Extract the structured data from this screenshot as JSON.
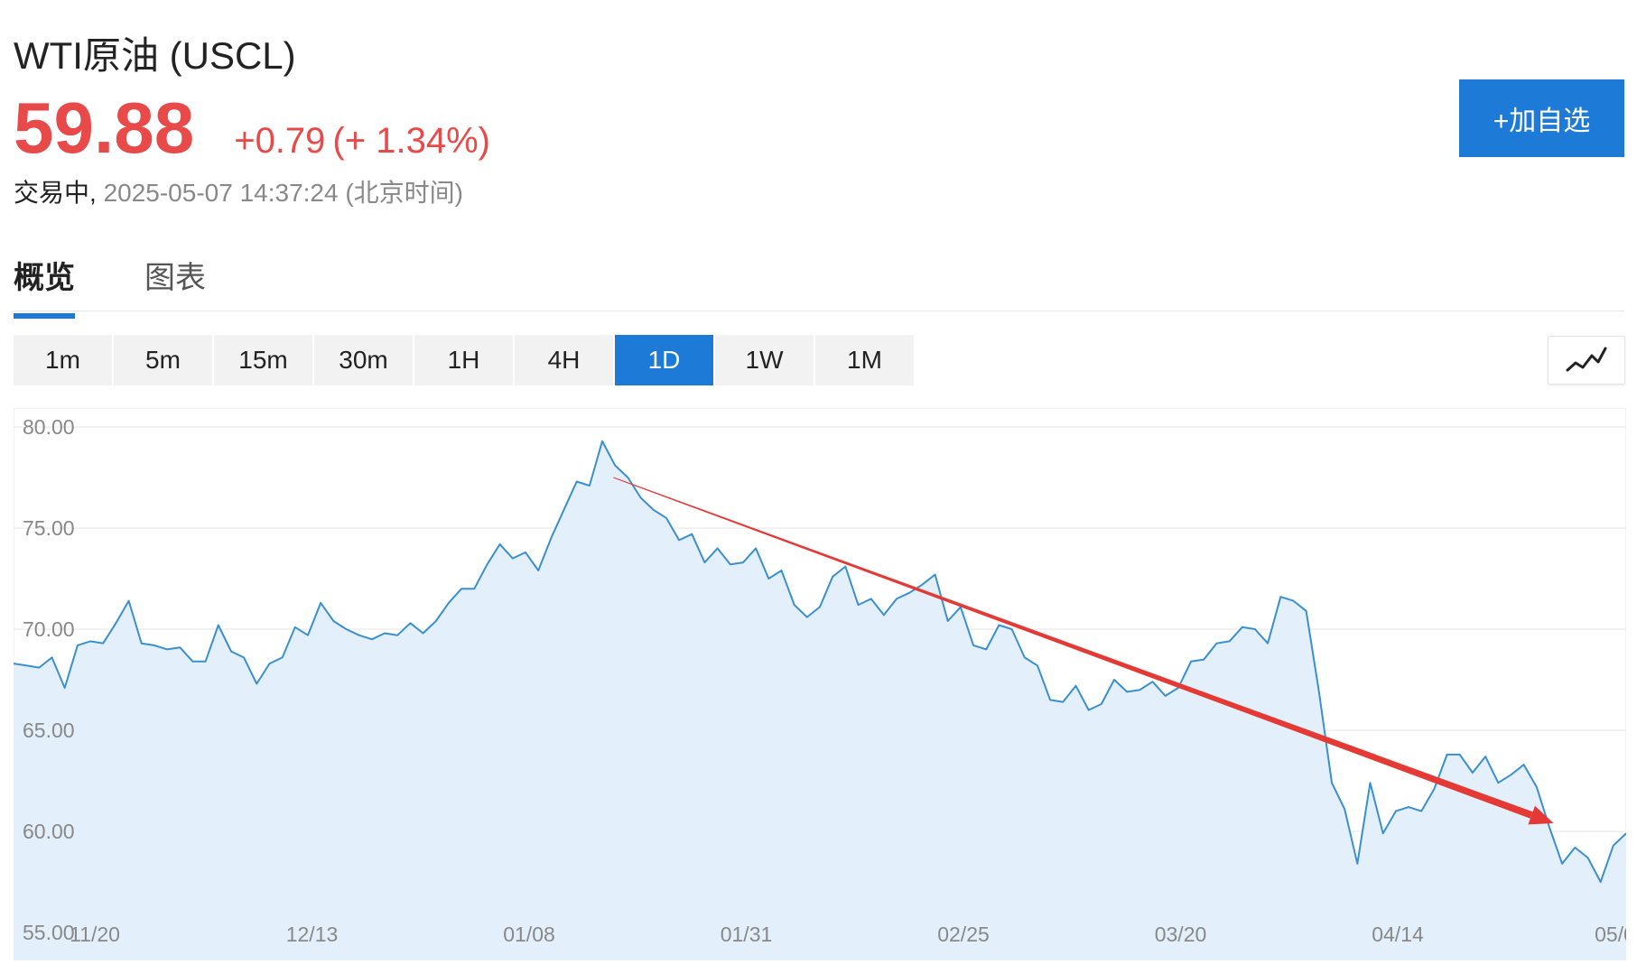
{
  "header": {
    "title": "WTI原油 (USCL)",
    "price": "59.88",
    "change": "+0.79",
    "change_pct": "(+ 1.34%)",
    "status": "交易中,",
    "timestamp": "2025-05-07 14:37:24 (北京时间)",
    "add_watchlist_label": "+加自选"
  },
  "tabs": [
    {
      "label": "概览",
      "active": true
    },
    {
      "label": "图表",
      "active": false
    }
  ],
  "periods": [
    {
      "label": "1m",
      "active": false
    },
    {
      "label": "5m",
      "active": false
    },
    {
      "label": "15m",
      "active": false
    },
    {
      "label": "30m",
      "active": false
    },
    {
      "label": "1H",
      "active": false
    },
    {
      "label": "4H",
      "active": false
    },
    {
      "label": "1D",
      "active": true
    },
    {
      "label": "1W",
      "active": false
    },
    {
      "label": "1M",
      "active": false
    }
  ],
  "chart_type_icon": "line-chart-icon",
  "colors": {
    "accent": "#1e7ad7",
    "up": "#e84a4a",
    "line": "#3a8fd0",
    "area": "#e3f0fb",
    "annotation_arrow": "#e53935"
  },
  "chart_data": {
    "type": "area",
    "ylim": [
      55,
      80
    ],
    "y_ticks": [
      "80.00",
      "75.00",
      "70.00",
      "65.00",
      "60.00",
      "55.00"
    ],
    "x_ticks": [
      "11/20",
      "12/13",
      "01/08",
      "01/31",
      "02/25",
      "03/20",
      "04/14",
      "05/0"
    ],
    "grid": true,
    "series": [
      {
        "values": [
          68.3,
          68.2,
          68.1,
          68.6,
          67.1,
          69.2,
          69.4,
          69.3,
          70.3,
          71.4,
          69.3,
          69.2,
          69.0,
          69.1,
          68.4,
          68.4,
          70.2,
          68.9,
          68.6,
          67.3,
          68.3,
          68.6,
          70.1,
          69.7,
          71.3,
          70.4,
          70.0,
          69.7,
          69.5,
          69.8,
          69.7,
          70.3,
          69.8,
          70.4,
          71.3,
          72.0,
          72.0,
          73.2,
          74.2,
          73.5,
          73.8,
          72.9,
          74.5,
          75.9,
          77.3,
          77.1,
          79.3,
          78.1,
          77.5,
          76.5,
          75.9,
          75.5,
          74.4,
          74.7,
          73.3,
          74.0,
          73.2,
          73.3,
          74.0,
          72.5,
          72.9,
          71.2,
          70.6,
          71.1,
          72.6,
          73.1,
          71.2,
          71.5,
          70.7,
          71.5,
          71.8,
          72.2,
          72.7,
          70.4,
          71.1,
          69.2,
          69.0,
          70.2,
          70.0,
          68.6,
          68.2,
          66.5,
          66.4,
          67.2,
          66.0,
          66.3,
          67.5,
          66.9,
          67.0,
          67.4,
          66.7,
          67.1,
          68.4,
          68.5,
          69.3,
          69.4,
          70.1,
          70.0,
          69.3,
          71.6,
          71.4,
          70.9,
          66.9,
          62.4,
          61.1,
          58.4,
          62.4,
          59.9,
          61.0,
          61.2,
          61.0,
          62.1,
          63.8,
          63.8,
          62.9,
          63.7,
          62.4,
          62.8,
          63.3,
          62.2,
          60.2,
          58.4,
          59.2,
          58.7,
          57.5,
          59.3,
          59.9
        ]
      }
    ],
    "annotations": [
      {
        "type": "arrow",
        "from": {
          "date": "01/23",
          "value": 77.5
        },
        "to": {
          "date": "05/05",
          "value": 60.4
        }
      }
    ]
  }
}
